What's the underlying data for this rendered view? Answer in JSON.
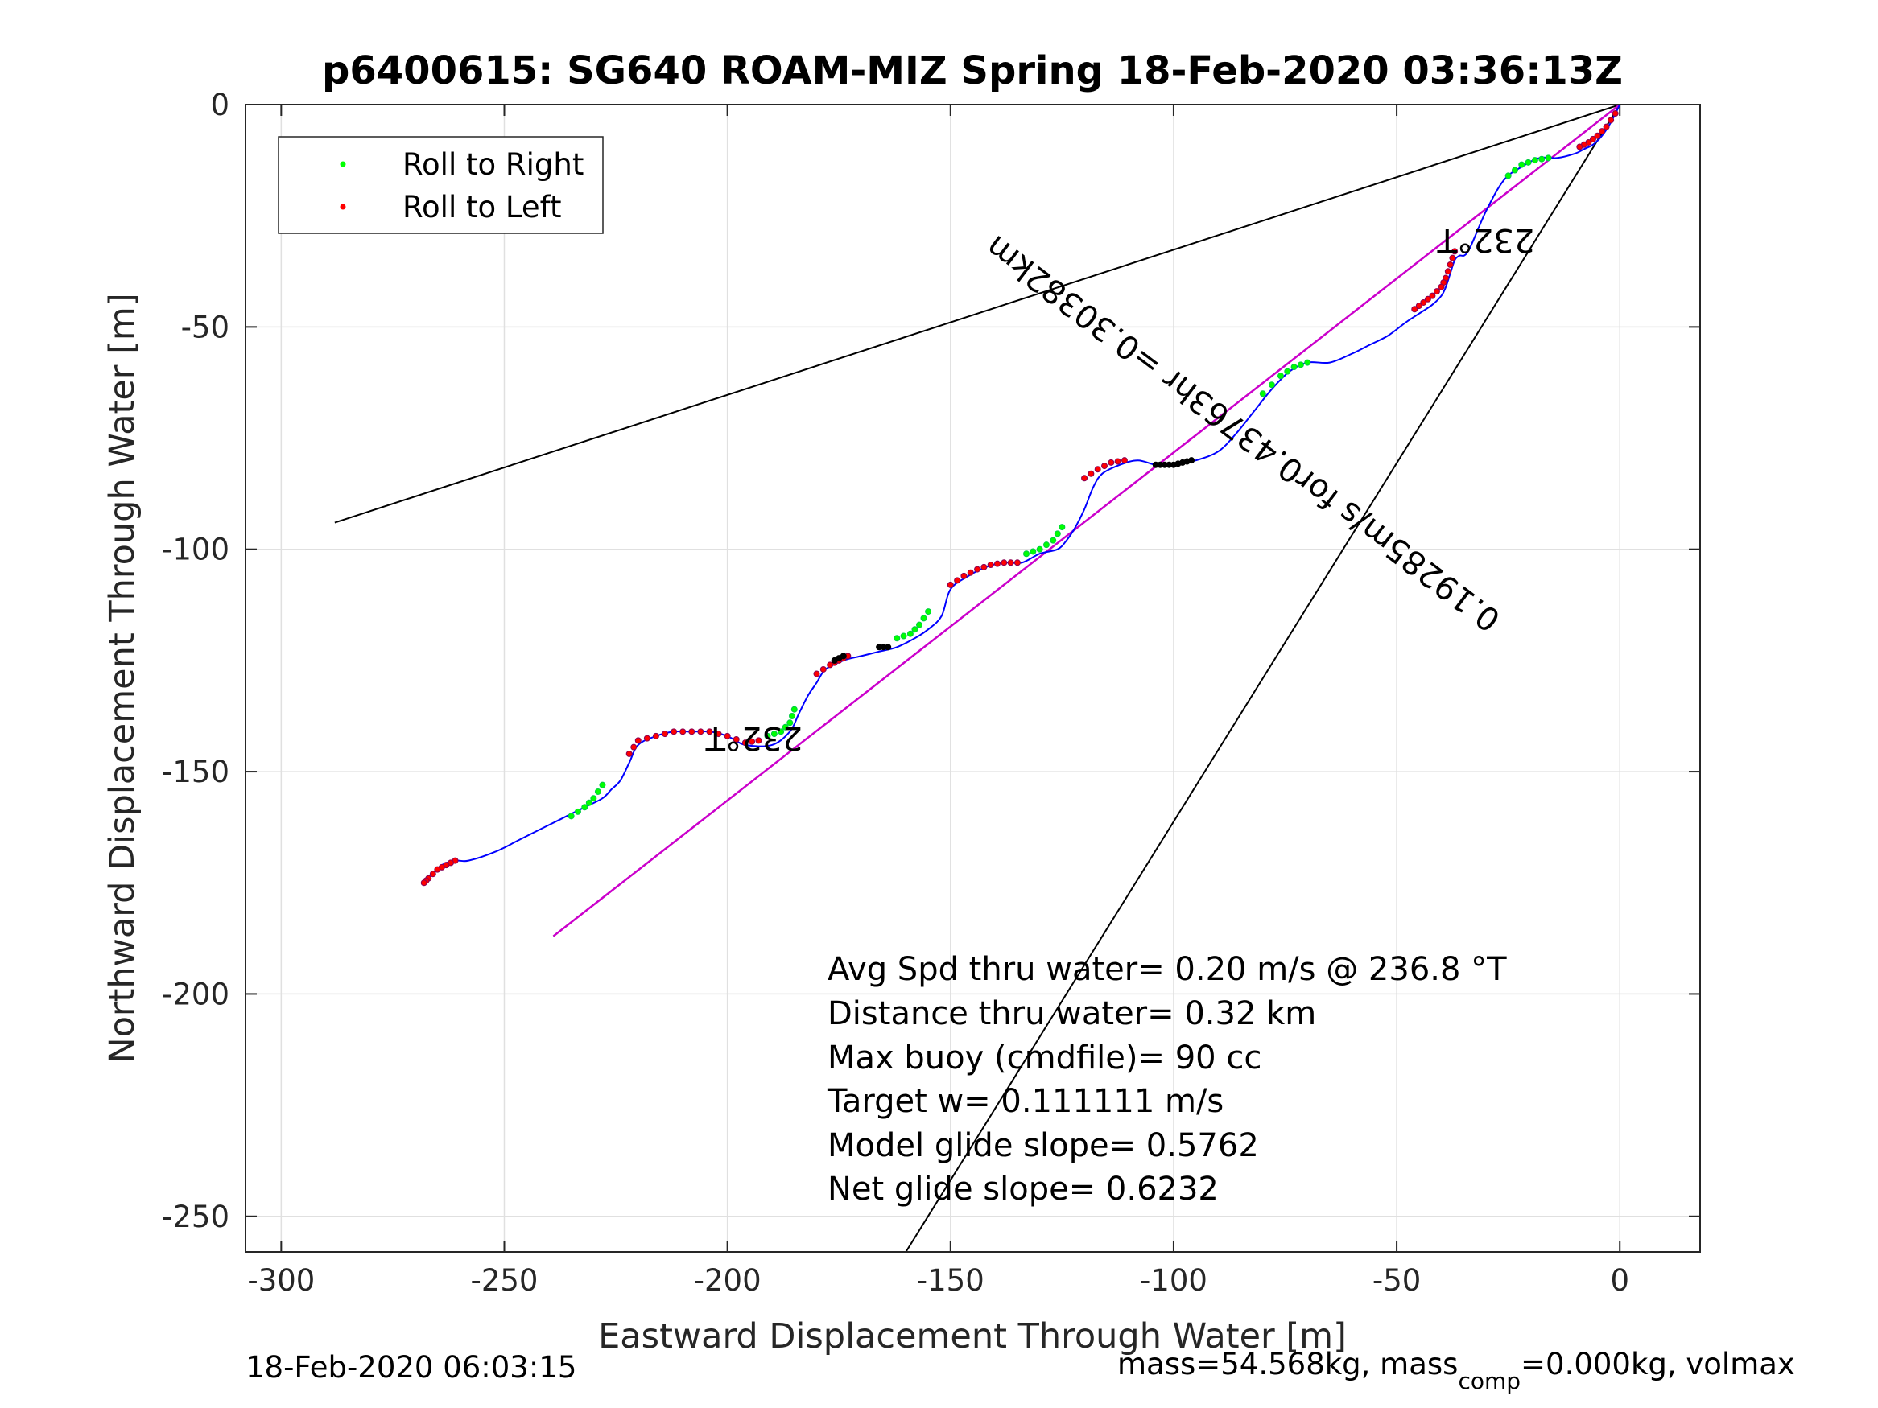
{
  "chart_data": {
    "type": "line",
    "title": "p6400615: SG640 ROAM-MIZ Spring 18-Feb-2020 03:36:13Z",
    "xlabel": "Eastward Displacement Through Water [m]",
    "ylabel": "Northward Displacement Through Water [m]",
    "xlim": [
      -308,
      18
    ],
    "ylim": [
      -258,
      0
    ],
    "xticks": [
      -300,
      -250,
      -200,
      -150,
      -100,
      -50,
      0
    ],
    "yticks": [
      0,
      -50,
      -100,
      -150,
      -200,
      -250
    ],
    "xtick_labels": [
      "-300",
      "-250",
      "-200",
      "-150",
      "-100",
      "-50",
      "0"
    ],
    "ytick_labels": [
      "0",
      "-50",
      "-100",
      "-150",
      "-200",
      "-250"
    ],
    "grid": true,
    "legend": {
      "placement": "top-left",
      "entries": [
        {
          "label": "Roll to Right",
          "color": "#00ff00"
        },
        {
          "label": "Roll to Left",
          "color": "#ff0000"
        }
      ]
    },
    "track": {
      "name": "glider track",
      "color": "#0000ff",
      "x": [
        0,
        -2,
        -4,
        -6,
        -8,
        -10,
        -14,
        -18,
        -22,
        -26,
        -30,
        -34,
        -36,
        -37,
        -38,
        -39,
        -40,
        -42,
        -45,
        -48,
        -52,
        -56,
        -60,
        -65,
        -70,
        -74,
        -78,
        -82,
        -86,
        -90,
        -95,
        -100,
        -104,
        -108,
        -112,
        -116,
        -118,
        -120,
        -122,
        -124,
        -126,
        -130,
        -134,
        -138,
        -142,
        -146,
        -150,
        -152,
        -155,
        -158,
        -162,
        -166,
        -170,
        -174,
        -178,
        -180,
        -182,
        -184,
        -186,
        -190,
        -196,
        -200,
        -204,
        -208,
        -212,
        -216,
        -220,
        -222,
        -224,
        -226,
        -228,
        -232,
        -236,
        -240,
        -246,
        -252,
        -258,
        -261,
        -264,
        -266,
        -268
      ],
      "y": [
        0,
        -4,
        -7,
        -9,
        -10,
        -11,
        -12,
        -12,
        -14,
        -17,
        -24,
        -33,
        -34,
        -35,
        -38,
        -41,
        -43,
        -45,
        -47,
        -49,
        -52,
        -54,
        -56,
        -58,
        -58,
        -60,
        -64,
        -69,
        -74,
        -78,
        -80,
        -81,
        -81,
        -80,
        -81,
        -83,
        -86,
        -91,
        -95,
        -98,
        -100,
        -101,
        -103,
        -103,
        -104,
        -106,
        -109,
        -115,
        -118,
        -120,
        -122,
        -123,
        -124,
        -125,
        -127,
        -130,
        -133,
        -137,
        -141,
        -144,
        -144,
        -142,
        -141,
        -141,
        -141,
        -142,
        -144,
        -148,
        -152,
        -154,
        -156,
        -158,
        -160,
        -162,
        -165,
        -168,
        -170,
        -170,
        -171,
        -173,
        -175
      ]
    },
    "roll_right_segments": [
      {
        "x": [
          -16,
          -19,
          -22,
          -25
        ],
        "y": [
          -12,
          -12.5,
          -13.5,
          -16
        ]
      },
      {
        "x": [
          -70,
          -73,
          -76,
          -80
        ],
        "y": [
          -58,
          -59,
          -61,
          -65
        ]
      },
      {
        "x": [
          -125,
          -127,
          -130,
          -133
        ],
        "y": [
          -95,
          -98,
          -100,
          -101
        ]
      },
      {
        "x": [
          -155,
          -157,
          -159,
          -162
        ],
        "y": [
          -114,
          -117,
          -119,
          -120
        ]
      },
      {
        "x": [
          -185,
          -186,
          -188,
          -191
        ],
        "y": [
          -136,
          -139,
          -141,
          -142
        ]
      },
      {
        "x": [
          -228,
          -230,
          -232,
          -235
        ],
        "y": [
          -153,
          -156,
          -158,
          -160
        ]
      }
    ],
    "roll_left_segments": [
      {
        "x": [
          -1,
          -3,
          -5,
          -7,
          -9
        ],
        "y": [
          -2,
          -5,
          -7,
          -8.5,
          -9.5
        ]
      },
      {
        "x": [
          -37,
          -38,
          -39,
          -40,
          -42,
          -44,
          -46
        ],
        "y": [
          -33,
          -36,
          -39,
          -41,
          -43,
          -44.5,
          -46
        ]
      },
      {
        "x": [
          -111,
          -114,
          -117,
          -120
        ],
        "y": [
          -80,
          -80.5,
          -82,
          -84
        ]
      },
      {
        "x": [
          -135,
          -138,
          -141,
          -144,
          -147,
          -150
        ],
        "y": [
          -103,
          -103,
          -103.5,
          -104.5,
          -106,
          -108
        ]
      },
      {
        "x": [
          -173,
          -175,
          -177,
          -180
        ],
        "y": [
          -124,
          -125,
          -126,
          -128
        ]
      },
      {
        "x": [
          -193,
          -196,
          -200,
          -204,
          -208,
          -212,
          -216,
          -220,
          -222
        ],
        "y": [
          -143,
          -143.5,
          -142,
          -141,
          -141,
          -141,
          -142,
          -143,
          -146
        ]
      },
      {
        "x": [
          -261,
          -263,
          -265,
          -267,
          -268
        ],
        "y": [
          -170,
          -171,
          -172,
          -174,
          -175
        ]
      }
    ],
    "other_marks": [
      {
        "x": [
          -96,
          -98,
          -100,
          -102,
          -104
        ],
        "y": [
          -80,
          -80.5,
          -81,
          -81,
          -81
        ]
      },
      {
        "x": [
          -164,
          -166
        ],
        "y": [
          -122,
          -122
        ]
      },
      {
        "x": [
          -174,
          -176
        ],
        "y": [
          -124,
          -125
        ]
      }
    ],
    "reference_lines": [
      {
        "name": "upper bound",
        "color": "#000000",
        "x": [
          0,
          -288
        ],
        "y": [
          0,
          -94
        ]
      },
      {
        "name": "lower bound",
        "color": "#000000",
        "x": [
          0,
          -160
        ],
        "y": [
          0,
          -258
        ]
      },
      {
        "name": "mean heading",
        "color": "#000000",
        "x": [
          0,
          -239
        ],
        "y": [
          0,
          -187
        ]
      },
      {
        "name": "average velocity",
        "color": "#cc00cc",
        "x": [
          0,
          -239
        ],
        "y": [
          0,
          -187
        ]
      }
    ],
    "annotations": [
      {
        "text": "232°T",
        "x": -30,
        "y": -28,
        "angle_deg": 180
      },
      {
        "text": "232°T",
        "x": -194,
        "y": -140,
        "angle_deg": 180
      },
      {
        "text": "0.19285m/s for0.43763hr =0.30382km",
        "x": -83,
        "y": -72,
        "angle_deg": 217
      }
    ],
    "stats_lines": [
      "Avg Spd thru water=  0.20 m/s @ 236.8 °T",
      "Distance thru water=  0.32 km",
      "Max buoy (cmdfile)= 90 cc",
      "Target w= 0.111111 m/s",
      "Model glide slope= 0.5762",
      "Net glide slope= 0.6232"
    ]
  },
  "footer": {
    "timestamp": "18-Feb-2020 06:03:15",
    "mass_prefix": "mass=54.568kg, mass",
    "mass_sub": "comp",
    "mass_suffix": "=0.000kg, volmax"
  }
}
